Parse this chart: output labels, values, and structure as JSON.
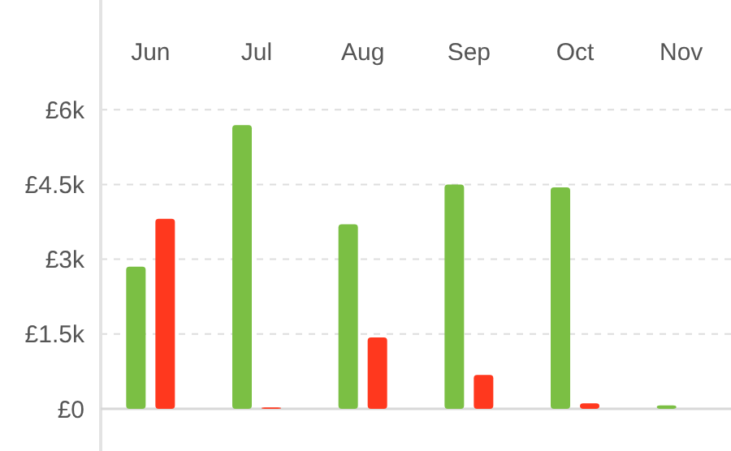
{
  "chart_data": {
    "type": "bar",
    "categories": [
      "Jun",
      "Jul",
      "Aug",
      "Sep",
      "Oct",
      "Nov"
    ],
    "series": [
      {
        "color": "#7bbf44",
        "values": [
          2850,
          5690,
          3700,
          4500,
          4440,
          70
        ]
      },
      {
        "color": "#ff381e",
        "values": [
          3810,
          30,
          1430,
          680,
          110,
          null
        ]
      }
    ],
    "ylim": [
      0,
      8200
    ],
    "yticks": [
      {
        "value": 0,
        "label": "£0"
      },
      {
        "value": 1500,
        "label": "£1.5k"
      },
      {
        "value": 3000,
        "label": "£3k"
      },
      {
        "value": 4500,
        "label": "£4.5k"
      },
      {
        "value": 6000,
        "label": "£6k"
      }
    ],
    "grid": "y"
  }
}
